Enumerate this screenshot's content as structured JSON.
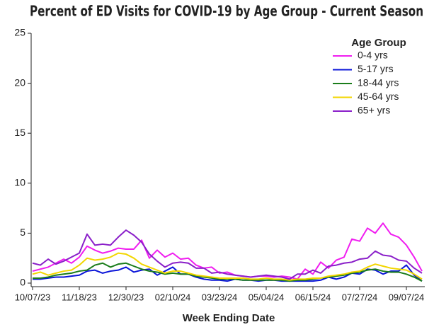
{
  "chart_data": {
    "type": "line",
    "title": "Percent of ED Visits for COVID-19 by Age Group - Current Season",
    "x_label": "Week Ending Date",
    "legend_title": "Age Group",
    "legend": "upper right",
    "categories": [
      "10/07/23",
      null,
      null,
      null,
      null,
      null,
      "11/18/23",
      null,
      null,
      null,
      null,
      null,
      "12/30/23",
      null,
      null,
      null,
      null,
      null,
      "02/10/24",
      null,
      null,
      null,
      null,
      null,
      "03/23/24",
      null,
      null,
      null,
      null,
      null,
      "05/04/24",
      null,
      null,
      null,
      null,
      null,
      "06/15/24",
      null,
      null,
      null,
      null,
      null,
      "07/27/24",
      null,
      null,
      null,
      null,
      null,
      "09/07/24",
      null,
      null
    ],
    "ylim": [
      0,
      25
    ],
    "yticks": [
      0,
      5,
      10,
      15,
      20,
      25
    ],
    "series": [
      {
        "name": "0-4 yrs",
        "color": "#f01df0",
        "values": [
          1.2,
          1.4,
          1.6,
          2.0,
          2.4,
          2.0,
          2.6,
          3.7,
          3.3,
          3.0,
          3.2,
          3.5,
          3.4,
          3.4,
          4.3,
          2.5,
          3.3,
          2.6,
          3.0,
          2.4,
          2.5,
          1.8,
          1.5,
          1.6,
          1.0,
          1.1,
          0.8,
          0.7,
          0.6,
          0.7,
          0.7,
          0.6,
          0.7,
          0.6,
          0.4,
          1.4,
          0.9,
          2.1,
          1.5,
          2.3,
          2.6,
          4.4,
          4.2,
          5.5,
          5.0,
          6.0,
          4.9,
          4.6,
          3.8,
          2.6,
          1.2
        ]
      },
      {
        "name": "5-17 yrs",
        "color": "#0a14d8",
        "values": [
          0.4,
          0.4,
          0.5,
          0.6,
          0.6,
          0.7,
          0.8,
          1.2,
          1.3,
          1.0,
          1.2,
          1.3,
          1.6,
          1.1,
          1.3,
          1.4,
          0.8,
          1.2,
          1.6,
          0.9,
          0.9,
          0.6,
          0.4,
          0.3,
          0.3,
          0.2,
          0.4,
          0.3,
          0.3,
          0.2,
          0.3,
          0.3,
          0.2,
          0.2,
          0.2,
          0.2,
          0.2,
          0.3,
          0.6,
          0.4,
          0.6,
          1.0,
          0.9,
          1.4,
          1.3,
          0.9,
          1.2,
          1.2,
          1.8,
          0.8,
          0.2
        ]
      },
      {
        "name": "18-44 yrs",
        "color": "#1b7d1b",
        "values": [
          0.5,
          0.5,
          0.6,
          0.8,
          0.9,
          1.0,
          1.2,
          1.3,
          1.8,
          2.0,
          1.6,
          1.9,
          2.0,
          1.7,
          1.4,
          1.2,
          1.1,
          0.9,
          1.0,
          0.9,
          0.9,
          0.7,
          0.6,
          0.5,
          0.4,
          0.4,
          0.4,
          0.3,
          0.3,
          0.3,
          0.3,
          0.3,
          0.3,
          0.2,
          0.3,
          0.3,
          0.4,
          0.5,
          0.6,
          0.7,
          0.8,
          1.0,
          1.1,
          1.3,
          1.4,
          1.2,
          1.1,
          1.1,
          0.9,
          0.6,
          0.2
        ]
      },
      {
        "name": "45-64 yrs",
        "color": "#f2d600",
        "values": [
          0.9,
          1.1,
          0.8,
          1.0,
          1.2,
          1.3,
          1.8,
          2.5,
          2.3,
          2.4,
          2.6,
          3.0,
          2.9,
          2.5,
          1.9,
          1.6,
          1.3,
          1.0,
          1.2,
          1.2,
          1.0,
          0.8,
          0.7,
          0.6,
          0.5,
          0.5,
          0.5,
          0.5,
          0.4,
          0.4,
          0.5,
          0.4,
          0.4,
          0.3,
          0.4,
          0.4,
          0.5,
          0.5,
          0.7,
          0.8,
          0.9,
          1.1,
          1.2,
          1.6,
          1.9,
          1.7,
          1.5,
          1.4,
          1.3,
          0.9,
          0.4
        ]
      },
      {
        "name": "65+ yrs",
        "color": "#8a1fc9",
        "values": [
          2.0,
          1.8,
          2.4,
          1.9,
          2.2,
          2.6,
          3.0,
          4.9,
          3.8,
          3.9,
          3.8,
          4.6,
          5.3,
          4.8,
          4.1,
          2.9,
          2.2,
          1.6,
          2.0,
          2.1,
          2.0,
          1.5,
          1.5,
          1.0,
          1.1,
          0.9,
          0.8,
          0.7,
          0.6,
          0.7,
          0.8,
          0.7,
          0.6,
          0.4,
          0.9,
          0.9,
          1.3,
          1.0,
          1.7,
          1.8,
          2.0,
          2.1,
          2.4,
          2.5,
          3.2,
          2.8,
          2.7,
          2.3,
          2.2,
          1.5,
          1.0
        ]
      }
    ]
  }
}
